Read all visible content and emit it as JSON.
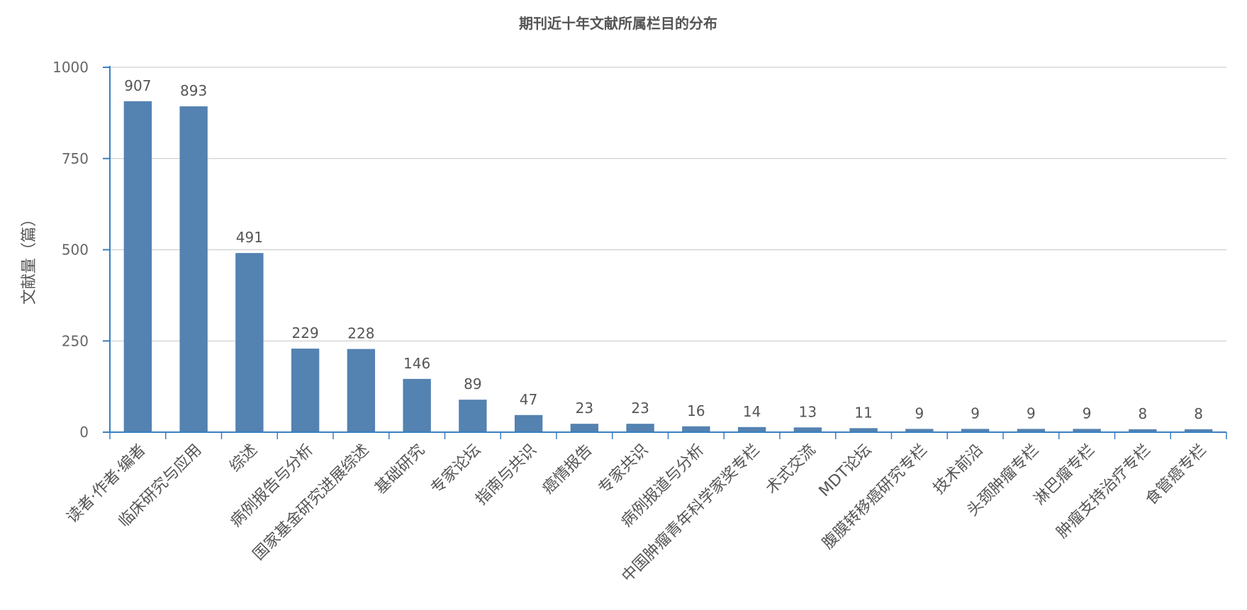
{
  "chart_data": {
    "type": "bar",
    "title": "期刊近十年文献所属栏目的分布",
    "xlabel": "",
    "ylabel": "文献量（篇）",
    "ylim": [
      0,
      1000
    ],
    "yticks": [
      0,
      250,
      500,
      750,
      1000
    ],
    "grid": true,
    "legend": "none",
    "bar_color": "#5482b1",
    "axis_color": "#3a7fc1",
    "categories": [
      "读者·作者·编者",
      "临床研究与应用",
      "综述",
      "病例报告与分析",
      "国家基金研究进展综述",
      "基础研究",
      "专家论坛",
      "指南与共识",
      "癌情报告",
      "专家共识",
      "病例报道与分析",
      "中国肿瘤青年科学家奖专栏",
      "术式交流",
      "MDT论坛",
      "腹膜转移癌研究专栏",
      "技术前沿",
      "头颈肿瘤专栏",
      "淋巴瘤专栏",
      "肿瘤支持治疗专栏",
      "食管癌专栏"
    ],
    "values": [
      907,
      893,
      491,
      229,
      228,
      146,
      89,
      47,
      23,
      23,
      16,
      14,
      13,
      11,
      9,
      9,
      9,
      9,
      8,
      8
    ]
  }
}
